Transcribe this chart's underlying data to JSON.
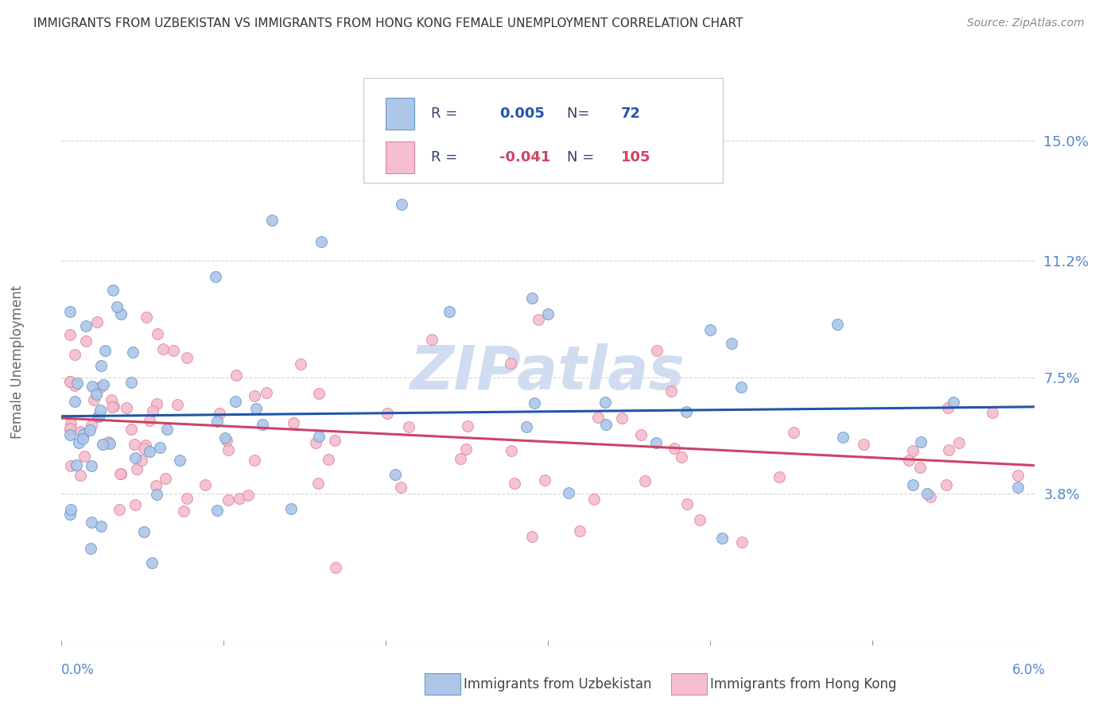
{
  "title": "IMMIGRANTS FROM UZBEKISTAN VS IMMIGRANTS FROM HONG KONG FEMALE UNEMPLOYMENT CORRELATION CHART",
  "source": "Source: ZipAtlas.com",
  "ylabel_label": "Female Unemployment",
  "y_tick_labels": [
    "15.0%",
    "11.2%",
    "7.5%",
    "3.8%"
  ],
  "y_tick_values": [
    0.15,
    0.112,
    0.075,
    0.038
  ],
  "x_range": [
    0.0,
    0.06
  ],
  "y_range": [
    -0.01,
    0.17
  ],
  "series": [
    {
      "name": "Immigrants from Uzbekistan",
      "color": "#aec6e8",
      "edge_color": "#6699cc",
      "line_color": "#2255aa",
      "R": 0.005,
      "N": 72,
      "R_str": "0.005",
      "N_str": "72"
    },
    {
      "name": "Immigrants from Hong Kong",
      "color": "#f5bdd0",
      "edge_color": "#dd8899",
      "line_color": "#cc4466",
      "R": -0.041,
      "N": 105,
      "R_str": "-0.041",
      "N_str": "105"
    }
  ],
  "background_color": "#ffffff",
  "grid_color": "#cccccc",
  "title_color": "#333333",
  "axis_label_color": "#5588cc",
  "watermark_color": "#d0ddf0",
  "legend_text_color": "#334466"
}
